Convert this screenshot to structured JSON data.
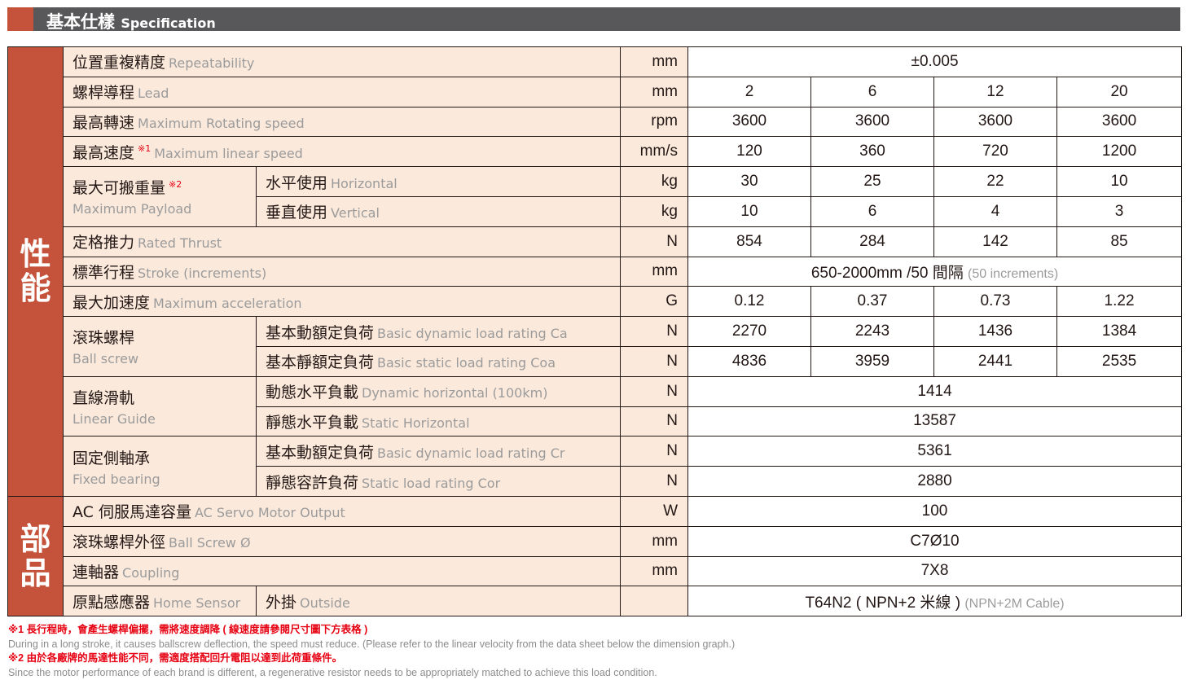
{
  "header": {
    "title_zh": "基本仕樣",
    "title_en": "Specification",
    "accent": "#c5523a"
  },
  "sections": [
    {
      "name": "性能",
      "rows": [
        {
          "zh": "位置重複精度",
          "en": "Repeatability",
          "unit": "mm",
          "values": [
            "±0.005"
          ]
        },
        {
          "zh": "螺桿導程",
          "en": "Lead",
          "unit": "mm",
          "values": [
            "2",
            "6",
            "12",
            "20"
          ]
        },
        {
          "zh": "最高轉速",
          "en": "Maximum Rotating speed",
          "unit": "rpm",
          "values": [
            "3600",
            "3600",
            "3600",
            "3600"
          ]
        },
        {
          "zh": "最高速度",
          "en": "Maximum linear speed",
          "note": "※1",
          "unit": "mm/s",
          "values": [
            "120",
            "360",
            "720",
            "1200"
          ]
        },
        {
          "zh": "最大可搬重量",
          "en": "Maximum Payload",
          "note": "※2",
          "sub": [
            {
              "zh": "水平使用",
              "en": "Horizontal",
              "unit": "kg",
              "values": [
                "30",
                "25",
                "22",
                "10"
              ]
            },
            {
              "zh": "垂直使用",
              "en": "Vertical",
              "unit": "kg",
              "values": [
                "10",
                "6",
                "4",
                "3"
              ]
            }
          ]
        },
        {
          "zh": "定格推力",
          "en": "Rated Thrust",
          "unit": "N",
          "values": [
            "854",
            "284",
            "142",
            "85"
          ]
        },
        {
          "zh": "標準行程",
          "en": "Stroke (increments)",
          "unit": "mm",
          "values": [
            "650-2000mm /50 間隔"
          ],
          "value_note": "(50 increments)"
        },
        {
          "zh": "最大加速度",
          "en": "Maximum acceleration",
          "unit": "G",
          "values": [
            "0.12",
            "0.37",
            "0.73",
            "1.22"
          ]
        },
        {
          "zh": "滾珠螺桿",
          "en": "Ball screw",
          "sub": [
            {
              "zh": "基本動額定負荷",
              "en": "Basic dynamic load rating Ca",
              "unit": "N",
              "values": [
                "2270",
                "2243",
                "1436",
                "1384"
              ]
            },
            {
              "zh": "基本靜額定負荷",
              "en": "Basic static load rating Coa",
              "unit": "N",
              "values": [
                "4836",
                "3959",
                "2441",
                "2535"
              ]
            }
          ]
        },
        {
          "zh": "直線滑軌",
          "en": "Linear Guide",
          "sub": [
            {
              "zh": "動態水平負載",
              "en": "Dynamic horizontal (100km)",
              "unit": "N",
              "values": [
                "1414"
              ]
            },
            {
              "zh": "靜態水平負載",
              "en": "Static Horizontal",
              "unit": "N",
              "values": [
                "13587"
              ]
            }
          ]
        },
        {
          "zh": "固定側軸承",
          "en": "Fixed bearing",
          "sub": [
            {
              "zh": "基本動額定負荷",
              "en": "Basic dynamic load rating Cr",
              "unit": "N",
              "values": [
                "5361"
              ]
            },
            {
              "zh": "靜態容許負荷",
              "en": "Static load rating Cor",
              "unit": "N",
              "values": [
                "2880"
              ]
            }
          ]
        }
      ]
    },
    {
      "name": "部品",
      "rows": [
        {
          "zh": "AC 伺服馬達容量",
          "en": "AC Servo Motor Output",
          "unit": "W",
          "values": [
            "100"
          ]
        },
        {
          "zh": "滾珠螺桿外徑",
          "en": "Ball Screw Ø",
          "unit": "mm",
          "values": [
            "C7Ø10"
          ]
        },
        {
          "zh": "連軸器",
          "en": "Coupling",
          "unit": "mm",
          "values": [
            "7X8"
          ]
        },
        {
          "zh": "原點感應器",
          "en": "Home Sensor",
          "inline": true,
          "sub": [
            {
              "zh": "外掛",
              "en": "Outside",
              "unit": "",
              "values": [
                "T64N2 ( NPN+2 米線 )"
              ],
              "value_note": "(NPN+2M Cable)"
            }
          ]
        }
      ]
    }
  ],
  "footnotes": [
    {
      "style": "red",
      "text": "※1 長行程時，會產生螺桿偏擺，需將速度調降 ( 線速度請參閱尺寸圖下方表格 )"
    },
    {
      "style": "grey",
      "text": "During in a long stroke, it causes ballscrew deflection, the speed must reduce. (Please refer to the linear velocity from the data sheet below the dimension graph.)"
    },
    {
      "style": "red",
      "text": "※2 由於各廠牌的馬達性能不同，需適度搭配回升電阻以達到此荷重條件。"
    },
    {
      "style": "grey",
      "text": "Since the motor performance of each brand is different, a regenerative resistor needs to be appropriately matched to achieve this load condition."
    }
  ]
}
